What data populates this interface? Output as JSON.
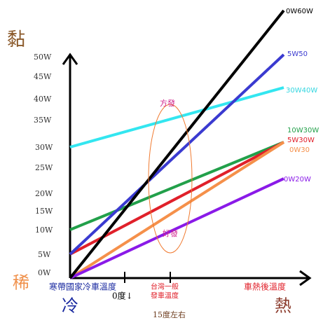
{
  "axis": {
    "y_top": "黏",
    "y_bottom": "稀",
    "x_left": "冷",
    "x_right": "熱",
    "y_labels": [
      "50W",
      "45W",
      "40W",
      "35W",
      "30W",
      "25W",
      "20W",
      "15W",
      "10W",
      "5W",
      "0W"
    ]
  },
  "lines": [
    {
      "label": "0W60W"
    },
    {
      "label": "5W50"
    },
    {
      "label": "30W40W"
    },
    {
      "label": "10W30W"
    },
    {
      "label": "5W30W"
    },
    {
      "label": "0W30"
    },
    {
      "label": "0W20W"
    }
  ],
  "ellipse": {
    "top": "方發",
    "bottom": "好發"
  },
  "x_notes": {
    "cold": "寒帶國家冷車溫度",
    "zero": "0度↓",
    "taiwan_1": "台灣一般",
    "taiwan_2": "發車溫度",
    "fifteen": "15度左右",
    "hot": "車熱後溫度"
  }
}
